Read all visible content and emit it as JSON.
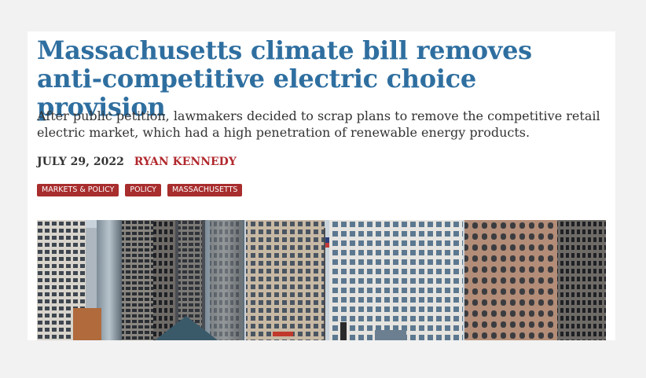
{
  "article": {
    "title": "Massachusetts climate bill removes anti-competitive electric choice provision",
    "summary": "After public petition, lawmakers decided to scrap plans to remove the competitive retail electric market, which had a high penetration of renewable energy products.",
    "date": "JULY 29, 2022",
    "author": "RYAN KENNEDY",
    "tags": [
      {
        "label": "MARKETS & POLICY"
      },
      {
        "label": "POLICY"
      },
      {
        "label": "MASSACHUSETTS"
      }
    ],
    "hero_image": {
      "icon": "city-skyline-photo"
    }
  },
  "colors": {
    "title": "#2f6fa0",
    "author": "#b0282d",
    "tag_bg": "#a82d2d",
    "page_bg": "#f2f2f2"
  }
}
